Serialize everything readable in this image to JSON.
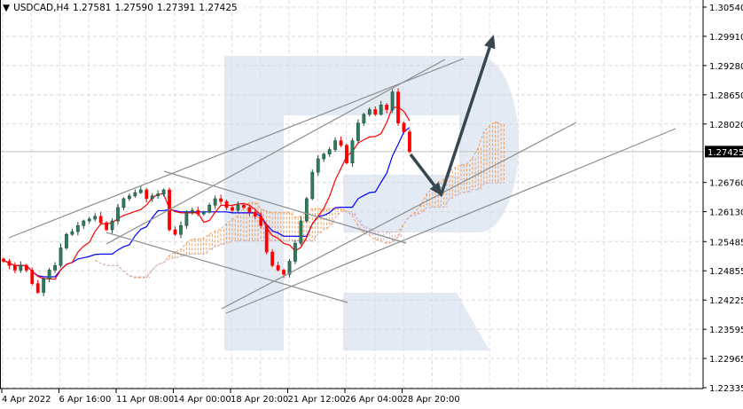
{
  "header": {
    "menu_icon": "triangle-down-icon",
    "symbol_timeframe": "USDCAD,H4",
    "open": "1.27581",
    "high": "1.27590",
    "low": "1.27391",
    "close": "1.27425"
  },
  "chart_data": {
    "type": "candlestick",
    "symbol": "USDCAD",
    "timeframe": "H4",
    "indicator": "Ichimoku Kinko Hyo",
    "ylim": [
      1.22335,
      1.3054
    ],
    "grid": true,
    "current_price": "1.27425",
    "price_ticks": [
      "1.30540",
      "1.29910",
      "1.29280",
      "1.28650",
      "1.28020",
      "1.26760",
      "1.26130",
      "1.25485",
      "1.24855",
      "1.24225",
      "1.23595",
      "1.22965",
      "1.22335"
    ],
    "x_ticks": [
      {
        "label": "4 Apr 2022",
        "bar": 0
      },
      {
        "label": "6 Apr 16:00",
        "bar": 10
      },
      {
        "label": "11 Apr 08:00",
        "bar": 20
      },
      {
        "label": "14 Apr 00:00",
        "bar": 30
      },
      {
        "label": "18 Apr 20:00",
        "bar": 40
      },
      {
        "label": "21 Apr 12:00",
        "bar": 50
      },
      {
        "label": "26 Apr 04:00",
        "bar": 60
      },
      {
        "label": "28 Apr 20:00",
        "bar": 70
      }
    ],
    "close": [
      1.2506,
      1.2497,
      1.2487,
      1.2497,
      1.2487,
      1.2458,
      1.2439,
      1.2468,
      1.2487,
      1.2497,
      1.2535,
      1.2564,
      1.257,
      1.2583,
      1.2593,
      1.2597,
      1.2603,
      1.2589,
      1.2574,
      1.2593,
      1.2622,
      1.2641,
      1.2647,
      1.2654,
      1.266,
      1.2641,
      1.2647,
      1.2651,
      1.266,
      1.2574,
      1.2564,
      1.2583,
      1.2612,
      1.2616,
      1.2608,
      1.2612,
      1.2627,
      1.2641,
      1.2635,
      1.2622,
      1.2616,
      1.2627,
      1.2622,
      1.2612,
      1.2603,
      1.2583,
      1.2526,
      1.2497,
      1.2487,
      1.2478,
      1.2506,
      1.2545,
      1.2593,
      1.2641,
      1.2698,
      1.2727,
      1.2737,
      1.2747,
      1.2766,
      1.2756,
      1.2718,
      1.2766,
      1.2804,
      1.2823,
      1.2833,
      1.2823,
      1.2843,
      1.2833,
      1.2871,
      1.2804,
      1.2785,
      1.27425
    ],
    "colors": {
      "bull_candle": "#2e7d5e",
      "bear_candle": "#ff0000",
      "tenkan_sen": "#ff0000",
      "kijun_sen": "#0000ff",
      "senkou_span_a": "#f0a060",
      "senkou_span_b": "#c8b0c8",
      "trend_lines": "#8a8e92",
      "forecast_arrows": "#37474f",
      "watermark": "#e3eaf3"
    }
  }
}
